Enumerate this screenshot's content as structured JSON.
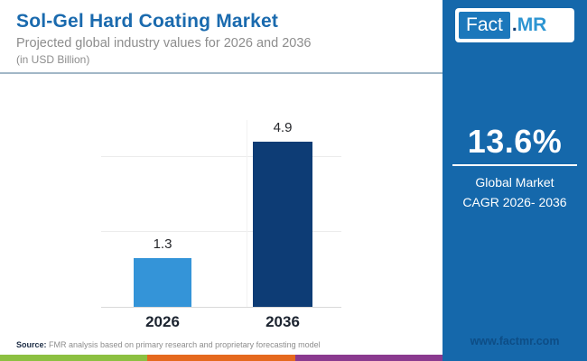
{
  "header": {
    "title": "Sol-Gel Hard Coating Market",
    "subtitle": "Projected global industry values for 2026 and 2036",
    "unit_note": "(in USD Billion)"
  },
  "chart_data": {
    "type": "bar",
    "categories": [
      "2026",
      "2036"
    ],
    "values": [
      1.3,
      4.9
    ],
    "value_labels": [
      "1.3",
      "4.9"
    ],
    "title": "Sol-Gel Hard Coating Market",
    "subtitle": "Projected global industry values for 2026 and 2036 (in USD Billion)",
    "xlabel": "",
    "ylabel": "",
    "ylim": [
      0,
      5
    ],
    "gridline_values": [
      2,
      4
    ],
    "grid": "horizontal",
    "legend": "none",
    "bar_colors": [
      "#3494d8",
      "#0d3c75"
    ]
  },
  "source": {
    "label": "Source:",
    "text": " FMR analysis based on primary research and proprietary forecasting model"
  },
  "sidebar": {
    "logo": {
      "fact": "Fact",
      "dot": ".",
      "mr": "MR"
    },
    "cagr_value": "13.6%",
    "caption_line1": "Global Market",
    "caption_line2": "CAGR 2026- 2036",
    "website": "www.factmr.com"
  },
  "colors": {
    "title_blue": "#1a6aae",
    "sidebar_bg": "#1568ab",
    "bar_2026": "#3494d8",
    "bar_2036": "#0d3c75",
    "strip_segments": [
      "#8cc041",
      "#e5691e",
      "#8a3a8f"
    ],
    "header_divider": "#a2b7c7",
    "website_text": "#0d4d86"
  }
}
